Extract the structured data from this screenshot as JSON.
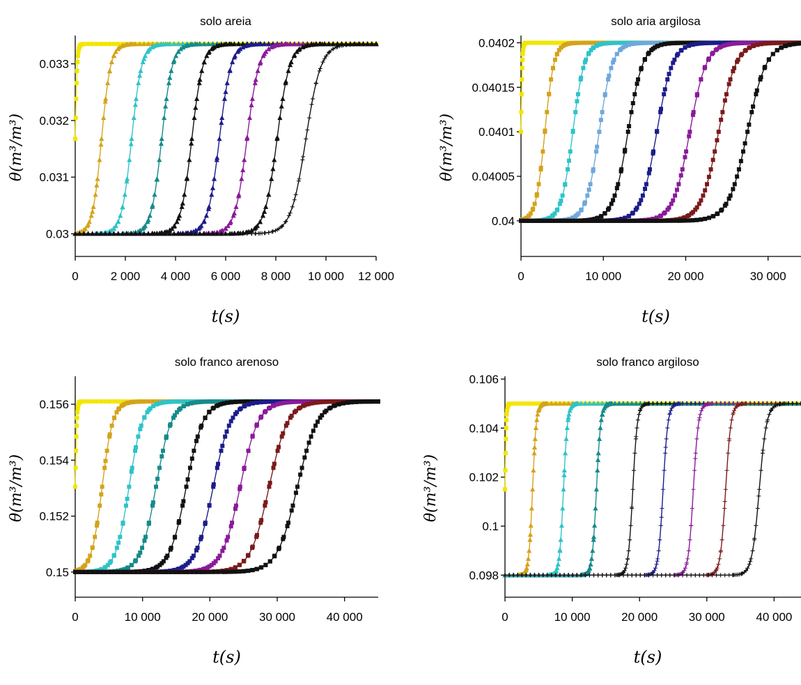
{
  "chart_data": [
    {
      "type": "line",
      "title": "solo areia",
      "xlabel": "t(s)",
      "ylabel": "θ(m³/m³)",
      "xlim": [
        0,
        12000
      ],
      "ylim": [
        0.0296,
        0.03345
      ],
      "xticks": [
        0,
        2000,
        4000,
        6000,
        8000,
        10000,
        12000
      ],
      "xtick_labels": [
        "0",
        "2 000",
        "4 000",
        "6 000",
        "8 000",
        "10 000",
        "12 000"
      ],
      "yticks": [
        0.03,
        0.031,
        0.032,
        0.033
      ],
      "ytick_labels": [
        "0.03",
        "0.031",
        "0.032",
        "0.033"
      ],
      "y_initial": 0.03,
      "y_final": 0.03335,
      "series": [
        {
          "color": "#f2e600",
          "marker": "square",
          "midpoint": 0,
          "width": 40
        },
        {
          "color": "#d4a31c",
          "marker": "triangle",
          "midpoint": 1050,
          "width": 180
        },
        {
          "color": "#2ec3c9",
          "marker": "triangle",
          "midpoint": 2250,
          "width": 200
        },
        {
          "color": "#168a8a",
          "marker": "triangle",
          "midpoint": 3450,
          "width": 210
        },
        {
          "color": "#111111",
          "marker": "triangle",
          "midpoint": 4650,
          "width": 220
        },
        {
          "color": "#1c1c8a",
          "marker": "triangle",
          "midpoint": 5750,
          "width": 230
        },
        {
          "color": "#8a1a9a",
          "marker": "triangle",
          "midpoint": 6850,
          "width": 240
        },
        {
          "color": "#111111",
          "marker": "triangle",
          "midpoint": 8050,
          "width": 250
        },
        {
          "color": "#111111",
          "marker": "plus",
          "midpoint": 9200,
          "width": 300
        }
      ]
    },
    {
      "type": "line",
      "title": "solo aria argilosa",
      "xlabel": "t(s)",
      "ylabel": "θ(m³/m³)",
      "xlim": [
        0,
        34000
      ],
      "ylim": [
        0.03996,
        0.040205
      ],
      "xticks": [
        0,
        10000,
        20000,
        30000
      ],
      "xtick_labels": [
        "0",
        "10 000",
        "20 000",
        "30 000"
      ],
      "yticks": [
        0.04,
        0.04005,
        0.0401,
        0.04015,
        0.0402
      ],
      "ytick_labels": [
        "0.04",
        "0.04005",
        "0.0401",
        "0.04015",
        "0.0402"
      ],
      "y_initial": 0.04,
      "y_final": 0.0402,
      "series": [
        {
          "color": "#f2e600",
          "marker": "square",
          "midpoint": 0,
          "width": 80
        },
        {
          "color": "#d4a31c",
          "marker": "square",
          "midpoint": 2900,
          "width": 550
        },
        {
          "color": "#2ec3c9",
          "marker": "square",
          "midpoint": 6300,
          "width": 700
        },
        {
          "color": "#6fa8dc",
          "marker": "square",
          "midpoint": 9500,
          "width": 800
        },
        {
          "color": "#111111",
          "marker": "square",
          "midpoint": 13000,
          "width": 900
        },
        {
          "color": "#1c1c8a",
          "marker": "square",
          "midpoint": 16500,
          "width": 950
        },
        {
          "color": "#8a1a9a",
          "marker": "square",
          "midpoint": 20500,
          "width": 1000
        },
        {
          "color": "#7a1a1a",
          "marker": "square",
          "midpoint": 24000,
          "width": 1050
        },
        {
          "color": "#111111",
          "marker": "square",
          "midpoint": 27500,
          "width": 1150
        }
      ]
    },
    {
      "type": "line",
      "title": "solo franco arenoso",
      "xlabel": "t(s)",
      "ylabel": "θ(m³/m³)",
      "xlim": [
        0,
        45000
      ],
      "ylim": [
        0.1491,
        0.1569
      ],
      "xticks": [
        0,
        10000,
        20000,
        30000,
        40000
      ],
      "xtick_labels": [
        "0",
        "10 000",
        "20 000",
        "30 000",
        "40 000"
      ],
      "yticks": [
        0.15,
        0.152,
        0.154,
        0.156
      ],
      "ytick_labels": [
        "0.15",
        "0.152",
        "0.154",
        "0.156"
      ],
      "y_initial": 0.15,
      "y_final": 0.1561,
      "series": [
        {
          "color": "#f2e600",
          "marker": "square",
          "midpoint": 0,
          "width": 120
        },
        {
          "color": "#d4a31c",
          "marker": "square",
          "midpoint": 4000,
          "width": 800
        },
        {
          "color": "#2ec3c9",
          "marker": "square",
          "midpoint": 8000,
          "width": 1000
        },
        {
          "color": "#168a8a",
          "marker": "square",
          "midpoint": 12000,
          "width": 1150
        },
        {
          "color": "#111111",
          "marker": "square",
          "midpoint": 16500,
          "width": 1250
        },
        {
          "color": "#1c1c8a",
          "marker": "square",
          "midpoint": 20500,
          "width": 1300
        },
        {
          "color": "#8a1a9a",
          "marker": "square",
          "midpoint": 24500,
          "width": 1350
        },
        {
          "color": "#7a1a1a",
          "marker": "square",
          "midpoint": 28800,
          "width": 1400
        },
        {
          "color": "#111111",
          "marker": "square",
          "midpoint": 33000,
          "width": 1500
        }
      ]
    },
    {
      "type": "line",
      "title": "solo franco argiloso",
      "xlabel": "t(s)",
      "ylabel": "θ(m³/m³)",
      "xlim": [
        0,
        44000
      ],
      "ylim": [
        0.0971,
        0.106
      ],
      "xticks": [
        0,
        10000,
        20000,
        30000,
        40000
      ],
      "xtick_labels": [
        "0",
        "10 000",
        "20 000",
        "30 000",
        "40 000"
      ],
      "yticks": [
        0.098,
        0.1,
        0.102,
        0.104,
        0.106
      ],
      "ytick_labels": [
        "0.098",
        "0.1",
        "0.102",
        "0.104",
        "0.106"
      ],
      "y_initial": 0.098,
      "y_final": 0.105,
      "series": [
        {
          "color": "#f2e600",
          "marker": "square",
          "midpoint": 0,
          "width": 100
        },
        {
          "color": "#d4a31c",
          "marker": "triangle",
          "midpoint": 4100,
          "width": 280
        },
        {
          "color": "#2ec3c9",
          "marker": "triangle",
          "midpoint": 8700,
          "width": 300
        },
        {
          "color": "#168a8a",
          "marker": "triangle",
          "midpoint": 13600,
          "width": 320
        },
        {
          "color": "#111111",
          "marker": "plus",
          "midpoint": 19000,
          "width": 340
        },
        {
          "color": "#1c1c8a",
          "marker": "plus",
          "midpoint": 23500,
          "width": 360
        },
        {
          "color": "#8a1a9a",
          "marker": "plus",
          "midpoint": 28000,
          "width": 380
        },
        {
          "color": "#7a1a1a",
          "marker": "plus",
          "midpoint": 32800,
          "width": 400
        },
        {
          "color": "#111111",
          "marker": "plus",
          "midpoint": 37800,
          "width": 550
        }
      ]
    }
  ]
}
